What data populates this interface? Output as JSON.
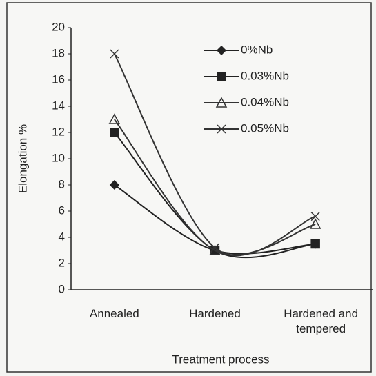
{
  "chart_data": {
    "type": "line",
    "xlabel": "Treatment process",
    "ylabel": "Elongation %",
    "categories": [
      "Annealed",
      "Hardened",
      "Hardened and tempered"
    ],
    "series": [
      {
        "name": "0%Nb",
        "color": "#222222",
        "marker": "diamond",
        "values": [
          8,
          3,
          3.5
        ]
      },
      {
        "name": "0.03%Nb",
        "color": "#222222",
        "marker": "square",
        "values": [
          12,
          3,
          3.5
        ]
      },
      {
        "name": "0.04%Nb",
        "color": "#333333",
        "marker": "triangle",
        "values": [
          13,
          3,
          5
        ]
      },
      {
        "name": "0.05%Nb",
        "color": "#333333",
        "marker": "x",
        "values": [
          18,
          3.2,
          5.6
        ]
      }
    ],
    "ylim": [
      0,
      20
    ],
    "yticks": [
      0,
      2,
      4,
      6,
      8,
      10,
      12,
      14,
      16,
      18,
      20
    ],
    "smooth": true,
    "grid": false,
    "legend": "upper right"
  }
}
